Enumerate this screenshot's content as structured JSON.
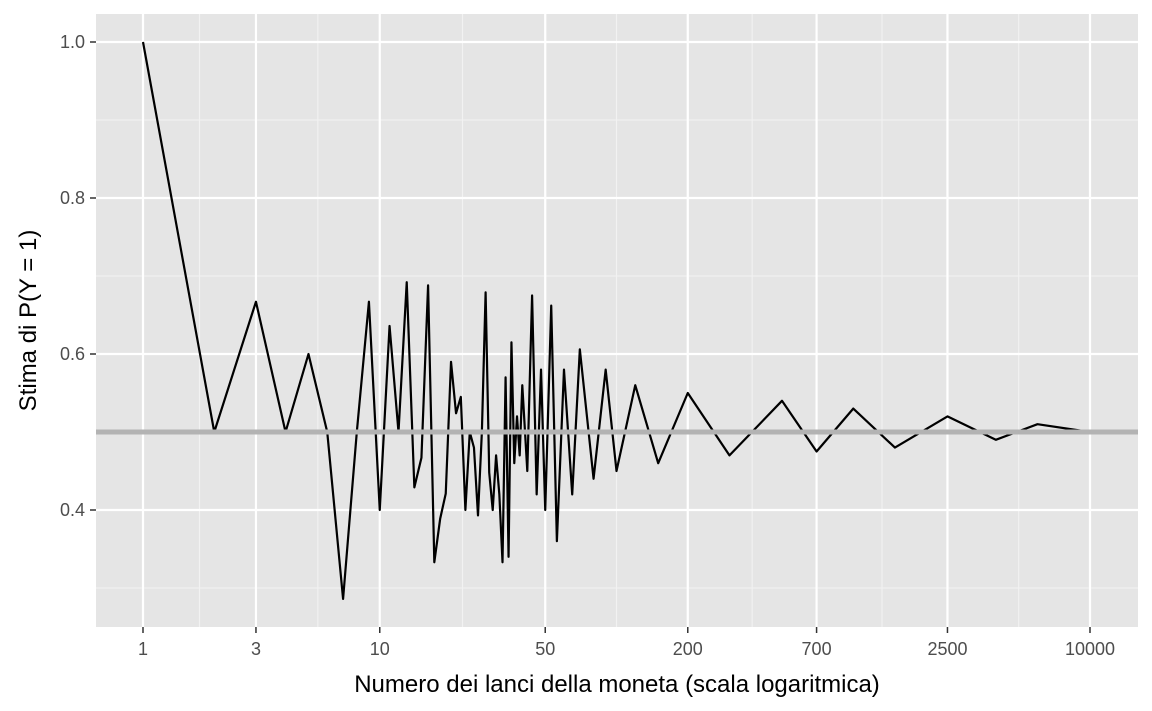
{
  "chart_data": {
    "type": "line",
    "title": "",
    "xlabel": "Numero dei lanci della moneta (scala logaritmica)",
    "ylabel": "Stima di P(Y = 1)",
    "x_scale": "log10",
    "xlim": [
      1,
      10000
    ],
    "ylim": [
      0.285,
      1.0
    ],
    "x_ticks": [
      1,
      3,
      10,
      50,
      200,
      700,
      2500,
      10000
    ],
    "x_tick_labels": [
      "1",
      "3",
      "10",
      "50",
      "200",
      "700",
      "2500",
      "10000"
    ],
    "y_ticks": [
      0.4,
      0.6,
      0.8,
      1.0
    ],
    "y_tick_labels": [
      "0.4",
      "0.6",
      "0.8",
      "1.0"
    ],
    "grid": true,
    "reference_line": {
      "y": 0.5,
      "color": "#b3b3b3"
    },
    "series": [
      {
        "color": "#000000",
        "x": [
          1,
          2,
          3,
          4,
          5,
          6,
          7,
          8,
          9,
          10,
          11,
          12,
          13,
          14,
          15,
          16,
          17,
          18,
          19,
          20,
          21,
          22,
          23,
          24,
          25,
          26,
          27,
          28,
          29,
          30,
          31,
          32,
          33,
          34,
          35,
          36,
          37,
          38,
          39,
          40,
          42,
          44,
          46,
          48,
          50,
          53,
          56,
          60,
          65,
          70,
          80,
          90,
          100,
          120,
          150,
          200,
          300,
          500,
          700,
          1000,
          1500,
          2500,
          4000,
          6000,
          10000
        ],
        "values": [
          1.0,
          0.5,
          0.667,
          0.5,
          0.6,
          0.5,
          0.286,
          0.5,
          0.667,
          0.4,
          0.636,
          0.5,
          0.692,
          0.429,
          0.467,
          0.688,
          0.333,
          0.389,
          0.421,
          0.59,
          0.524,
          0.545,
          0.4,
          0.5,
          0.48,
          0.393,
          0.5,
          0.679,
          0.448,
          0.4,
          0.47,
          0.42,
          0.333,
          0.57,
          0.34,
          0.615,
          0.46,
          0.52,
          0.47,
          0.56,
          0.45,
          0.675,
          0.42,
          0.58,
          0.4,
          0.662,
          0.36,
          0.58,
          0.42,
          0.606,
          0.44,
          0.58,
          0.45,
          0.56,
          0.46,
          0.55,
          0.47,
          0.54,
          0.475,
          0.53,
          0.48,
          0.52,
          0.49,
          0.51,
          0.5
        ]
      }
    ]
  }
}
